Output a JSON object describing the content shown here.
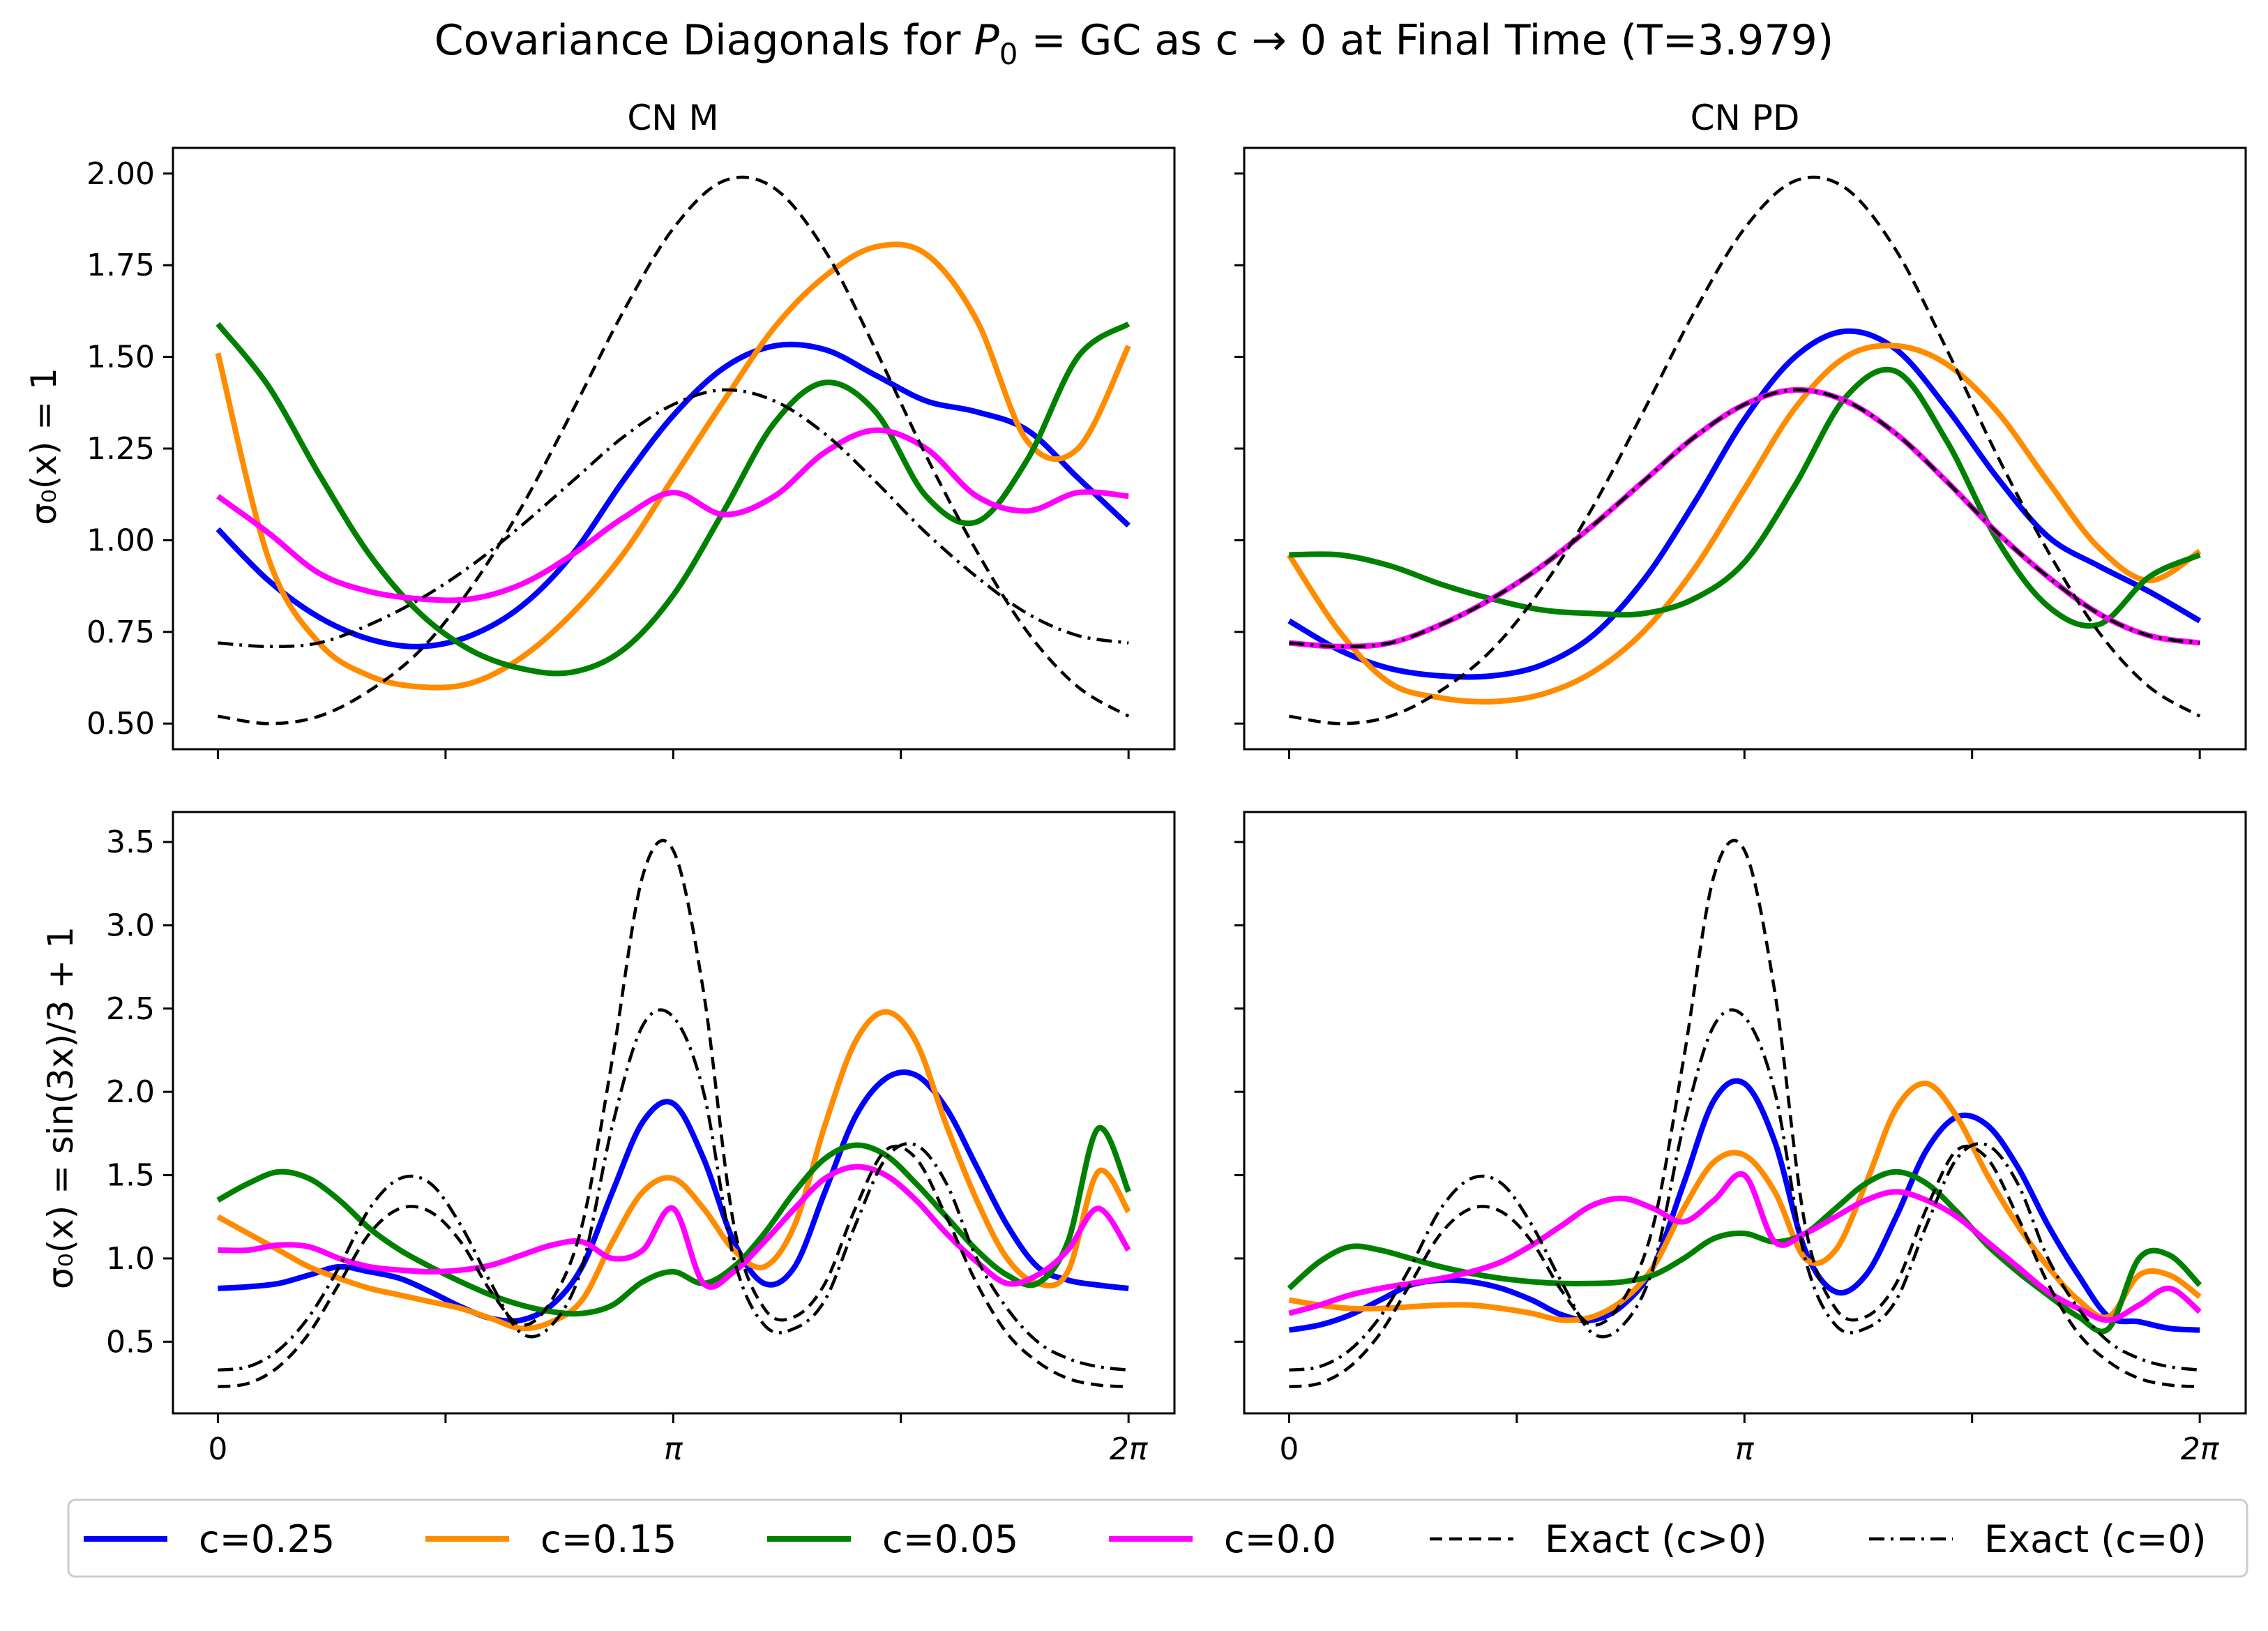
{
  "title": {
    "prefix": "Covariance Diagonals for ",
    "sym": "P",
    "sub": "0",
    "suffix": " = GC as c → 0 at Final Time (T=3.979)"
  },
  "columns": [
    "CN M",
    "CN PD"
  ],
  "row_labels": [
    "σ₀(x) = 1",
    "σ₀(x) = sin(3x)/3 + 1"
  ],
  "x_ticks": [
    {
      "label": "0",
      "value": 0
    },
    {
      "label": "",
      "value": 1.5708
    },
    {
      "label": "π",
      "value": 3.1416
    },
    {
      "label": "",
      "value": 4.7124
    },
    {
      "label": "2π",
      "value": 6.2832
    }
  ],
  "y_ticks_top": [
    "0.50",
    "0.75",
    "1.00",
    "1.25",
    "1.50",
    "1.75",
    "2.00"
  ],
  "y_ticks_bottom": [
    "0.5",
    "1.0",
    "1.5",
    "2.0",
    "2.5",
    "3.0",
    "3.5"
  ],
  "legend": [
    {
      "label": "c=0.25",
      "color": "#0000ff",
      "style": "solid"
    },
    {
      "label": "c=0.15",
      "color": "#ff8c00",
      "style": "solid"
    },
    {
      "label": "c=0.05",
      "color": "#008000",
      "style": "solid"
    },
    {
      "label": "c=0.0",
      "color": "#ff00ff",
      "style": "solid"
    },
    {
      "label": "Exact (c>0)",
      "color": "#000000",
      "style": "dashed"
    },
    {
      "label": "Exact (c=0)",
      "color": "#000000",
      "style": "dashdot"
    }
  ],
  "chart_data": [
    {
      "type": "line",
      "title": "CN M",
      "ylabel": "σ₀(x) = 1",
      "xlim": [
        -0.31,
        6.6
      ],
      "ylim": [
        0.43,
        2.07
      ],
      "x": [
        0,
        0.3491,
        0.6981,
        1.0472,
        1.3963,
        1.7453,
        2.0944,
        2.4435,
        2.7925,
        3.1416,
        3.4907,
        3.8397,
        4.1888,
        4.5379,
        4.8869,
        5.236,
        5.5851,
        5.9341,
        6.2832
      ],
      "series": [
        {
          "name": "c=0.25",
          "values": [
            1.03,
            0.89,
            0.79,
            0.73,
            0.71,
            0.74,
            0.82,
            0.96,
            1.16,
            1.34,
            1.47,
            1.53,
            1.52,
            1.45,
            1.38,
            1.35,
            1.3,
            1.17,
            1.04
          ]
        },
        {
          "name": "c=0.15",
          "values": [
            1.51,
            0.95,
            0.72,
            0.63,
            0.6,
            0.61,
            0.68,
            0.8,
            0.96,
            1.17,
            1.38,
            1.58,
            1.72,
            1.8,
            1.78,
            1.6,
            1.27,
            1.25,
            1.53
          ]
        },
        {
          "name": "c=0.05",
          "values": [
            1.59,
            1.42,
            1.18,
            0.96,
            0.8,
            0.7,
            0.65,
            0.64,
            0.7,
            0.85,
            1.08,
            1.32,
            1.43,
            1.35,
            1.12,
            1.05,
            1.22,
            1.5,
            1.59
          ]
        },
        {
          "name": "c=0.0",
          "values": [
            1.12,
            1.02,
            0.91,
            0.86,
            0.84,
            0.84,
            0.88,
            0.96,
            1.06,
            1.13,
            1.07,
            1.12,
            1.24,
            1.3,
            1.25,
            1.12,
            1.08,
            1.13,
            1.12
          ]
        },
        {
          "name": "Exact (c>0)",
          "values": [
            0.52,
            0.5,
            0.52,
            0.59,
            0.7,
            0.87,
            1.09,
            1.35,
            1.62,
            1.85,
            1.98,
            1.96,
            1.79,
            1.52,
            1.23,
            0.97,
            0.75,
            0.6,
            0.52
          ]
        },
        {
          "name": "Exact (c=0)",
          "values": [
            0.72,
            0.71,
            0.72,
            0.77,
            0.84,
            0.93,
            1.04,
            1.16,
            1.28,
            1.37,
            1.41,
            1.38,
            1.29,
            1.16,
            1.02,
            0.9,
            0.8,
            0.74,
            0.72
          ]
        }
      ]
    },
    {
      "type": "line",
      "title": "CN PD",
      "ylabel": "",
      "xlim": [
        -0.31,
        6.6
      ],
      "ylim": [
        0.43,
        2.07
      ],
      "x": [
        0,
        0.3491,
        0.6981,
        1.0472,
        1.3963,
        1.7453,
        2.0944,
        2.4435,
        2.7925,
        3.1416,
        3.4907,
        3.8397,
        4.1888,
        4.5379,
        4.8869,
        5.236,
        5.5851,
        5.9341,
        6.2832
      ],
      "series": [
        {
          "name": "c=0.25",
          "values": [
            0.78,
            0.7,
            0.65,
            0.63,
            0.63,
            0.66,
            0.74,
            0.89,
            1.1,
            1.33,
            1.5,
            1.57,
            1.52,
            1.36,
            1.17,
            1.01,
            0.93,
            0.86,
            0.78
          ]
        },
        {
          "name": "c=0.15",
          "values": [
            0.96,
            0.75,
            0.61,
            0.57,
            0.56,
            0.58,
            0.64,
            0.75,
            0.92,
            1.14,
            1.36,
            1.5,
            1.53,
            1.48,
            1.35,
            1.16,
            0.98,
            0.89,
            0.97
          ]
        },
        {
          "name": "c=0.05",
          "values": [
            0.96,
            0.96,
            0.93,
            0.88,
            0.84,
            0.81,
            0.8,
            0.8,
            0.84,
            0.94,
            1.15,
            1.39,
            1.46,
            1.27,
            1.0,
            0.82,
            0.77,
            0.9,
            0.96
          ]
        },
        {
          "name": "c=0.0",
          "values": [
            0.72,
            0.71,
            0.72,
            0.77,
            0.84,
            0.93,
            1.04,
            1.16,
            1.28,
            1.37,
            1.41,
            1.38,
            1.29,
            1.16,
            1.02,
            0.9,
            0.8,
            0.74,
            0.72
          ]
        },
        {
          "name": "Exact (c>0)",
          "values": [
            0.52,
            0.5,
            0.52,
            0.59,
            0.7,
            0.87,
            1.09,
            1.35,
            1.62,
            1.85,
            1.98,
            1.96,
            1.79,
            1.52,
            1.23,
            0.97,
            0.75,
            0.6,
            0.52
          ]
        },
        {
          "name": "Exact (c=0)",
          "values": [
            0.72,
            0.71,
            0.72,
            0.77,
            0.84,
            0.93,
            1.04,
            1.16,
            1.28,
            1.37,
            1.41,
            1.38,
            1.29,
            1.16,
            1.02,
            0.9,
            0.8,
            0.74,
            0.72
          ]
        }
      ]
    },
    {
      "type": "line",
      "title": "",
      "ylabel": "σ₀(x) = sin(3x)/3 + 1",
      "xlim": [
        -0.31,
        6.6
      ],
      "ylim": [
        0.07,
        3.68
      ],
      "x": [
        0,
        0.2094,
        0.4189,
        0.6283,
        0.8378,
        1.0472,
        1.2566,
        1.4661,
        1.6755,
        1.885,
        2.0944,
        2.3038,
        2.5133,
        2.7227,
        2.9322,
        3.1416,
        3.351,
        3.5605,
        3.7699,
        3.9794,
        4.1888,
        4.3982,
        4.6077,
        4.8171,
        5.0265,
        5.236,
        5.4454,
        5.6549,
        5.8643,
        6.0737,
        6.2832
      ],
      "series": [
        {
          "name": "c=0.25",
          "values": [
            0.82,
            0.83,
            0.85,
            0.9,
            0.95,
            0.92,
            0.88,
            0.8,
            0.71,
            0.64,
            0.63,
            0.72,
            0.95,
            1.4,
            1.82,
            1.93,
            1.6,
            1.1,
            0.85,
            0.95,
            1.4,
            1.85,
            2.08,
            2.1,
            1.9,
            1.55,
            1.2,
            0.95,
            0.87,
            0.84,
            0.82
          ]
        },
        {
          "name": "c=0.15",
          "values": [
            1.25,
            1.15,
            1.05,
            0.95,
            0.88,
            0.82,
            0.78,
            0.74,
            0.7,
            0.64,
            0.58,
            0.62,
            0.75,
            1.1,
            1.4,
            1.48,
            1.3,
            1.05,
            0.95,
            1.2,
            1.8,
            2.3,
            2.48,
            2.3,
            1.8,
            1.35,
            1.0,
            0.85,
            0.92,
            1.52,
            1.28
          ]
        },
        {
          "name": "c=0.05",
          "values": [
            1.35,
            1.45,
            1.52,
            1.48,
            1.35,
            1.18,
            1.05,
            0.95,
            0.86,
            0.78,
            0.72,
            0.68,
            0.67,
            0.72,
            0.86,
            0.92,
            0.85,
            0.95,
            1.15,
            1.4,
            1.6,
            1.68,
            1.62,
            1.45,
            1.25,
            1.05,
            0.9,
            0.85,
            1.1,
            1.78,
            1.4
          ]
        },
        {
          "name": "c=0.0",
          "values": [
            1.05,
            1.05,
            1.08,
            1.07,
            1.0,
            0.95,
            0.93,
            0.92,
            0.93,
            0.96,
            1.02,
            1.08,
            1.1,
            1.0,
            1.05,
            1.3,
            0.85,
            0.92,
            1.1,
            1.3,
            1.48,
            1.55,
            1.5,
            1.35,
            1.15,
            0.98,
            0.85,
            0.9,
            1.05,
            1.3,
            1.05
          ]
        },
        {
          "name": "Exact (c>0)",
          "values": [
            0.23,
            0.25,
            0.35,
            0.55,
            0.85,
            1.15,
            1.3,
            1.28,
            1.1,
            0.8,
            0.6,
            0.75,
            1.2,
            2.2,
            3.3,
            3.45,
            2.6,
            1.2,
            0.7,
            0.65,
            0.85,
            1.3,
            1.65,
            1.6,
            1.25,
            0.85,
            0.55,
            0.38,
            0.28,
            0.24,
            0.23
          ]
        },
        {
          "name": "Exact (c=0)",
          "values": [
            0.33,
            0.35,
            0.45,
            0.65,
            0.95,
            1.3,
            1.48,
            1.45,
            1.2,
            0.85,
            0.55,
            0.6,
            0.95,
            1.8,
            2.4,
            2.45,
            2.0,
            1.0,
            0.6,
            0.58,
            0.75,
            1.2,
            1.6,
            1.68,
            1.45,
            1.0,
            0.7,
            0.5,
            0.4,
            0.35,
            0.33
          ]
        }
      ]
    },
    {
      "type": "line",
      "title": "",
      "ylabel": "",
      "xlim": [
        -0.31,
        6.6
      ],
      "ylim": [
        0.07,
        3.68
      ],
      "x": [
        0,
        0.2094,
        0.4189,
        0.6283,
        0.8378,
        1.0472,
        1.2566,
        1.4661,
        1.6755,
        1.885,
        2.0944,
        2.3038,
        2.5133,
        2.7227,
        2.9322,
        3.1416,
        3.351,
        3.5605,
        3.7699,
        3.9794,
        4.1888,
        4.3982,
        4.6077,
        4.8171,
        5.0265,
        5.236,
        5.4454,
        5.6549,
        5.8643,
        6.0737,
        6.2832
      ],
      "series": [
        {
          "name": "c=0.25",
          "values": [
            0.57,
            0.6,
            0.66,
            0.75,
            0.84,
            0.87,
            0.86,
            0.82,
            0.75,
            0.66,
            0.63,
            0.72,
            0.95,
            1.45,
            1.95,
            2.05,
            1.7,
            1.05,
            0.8,
            0.9,
            1.25,
            1.65,
            1.85,
            1.8,
            1.55,
            1.2,
            0.9,
            0.65,
            0.62,
            0.58,
            0.57
          ]
        },
        {
          "name": "c=0.15",
          "values": [
            0.75,
            0.72,
            0.7,
            0.7,
            0.71,
            0.72,
            0.72,
            0.7,
            0.67,
            0.63,
            0.65,
            0.75,
            0.95,
            1.3,
            1.58,
            1.62,
            1.4,
            1.0,
            1.05,
            1.45,
            1.9,
            2.05,
            1.85,
            1.5,
            1.2,
            0.95,
            0.75,
            0.65,
            0.9,
            0.9,
            0.77
          ]
        },
        {
          "name": "c=0.05",
          "values": [
            0.82,
            0.98,
            1.07,
            1.05,
            1.0,
            0.95,
            0.91,
            0.88,
            0.86,
            0.85,
            0.85,
            0.86,
            0.9,
            1.0,
            1.12,
            1.15,
            1.1,
            1.15,
            1.3,
            1.45,
            1.52,
            1.45,
            1.28,
            1.08,
            0.92,
            0.78,
            0.65,
            0.58,
            1.0,
            1.02,
            0.84
          ]
        },
        {
          "name": "c=0.0",
          "values": [
            0.67,
            0.72,
            0.78,
            0.82,
            0.85,
            0.88,
            0.92,
            0.98,
            1.08,
            1.2,
            1.32,
            1.36,
            1.3,
            1.22,
            1.35,
            1.5,
            1.1,
            1.15,
            1.25,
            1.35,
            1.4,
            1.35,
            1.25,
            1.1,
            0.95,
            0.8,
            0.7,
            0.63,
            0.72,
            0.82,
            0.68
          ]
        },
        {
          "name": "Exact (c>0)",
          "values": [
            0.23,
            0.25,
            0.35,
            0.55,
            0.85,
            1.15,
            1.3,
            1.28,
            1.1,
            0.8,
            0.6,
            0.75,
            1.2,
            2.2,
            3.3,
            3.45,
            2.6,
            1.2,
            0.7,
            0.65,
            0.85,
            1.3,
            1.65,
            1.6,
            1.25,
            0.85,
            0.55,
            0.38,
            0.28,
            0.24,
            0.23
          ]
        },
        {
          "name": "Exact (c=0)",
          "values": [
            0.33,
            0.35,
            0.45,
            0.65,
            0.95,
            1.3,
            1.48,
            1.45,
            1.2,
            0.85,
            0.55,
            0.6,
            0.95,
            1.8,
            2.4,
            2.45,
            2.0,
            1.0,
            0.6,
            0.58,
            0.75,
            1.2,
            1.6,
            1.68,
            1.45,
            1.0,
            0.7,
            0.5,
            0.4,
            0.35,
            0.33
          ]
        }
      ]
    }
  ]
}
